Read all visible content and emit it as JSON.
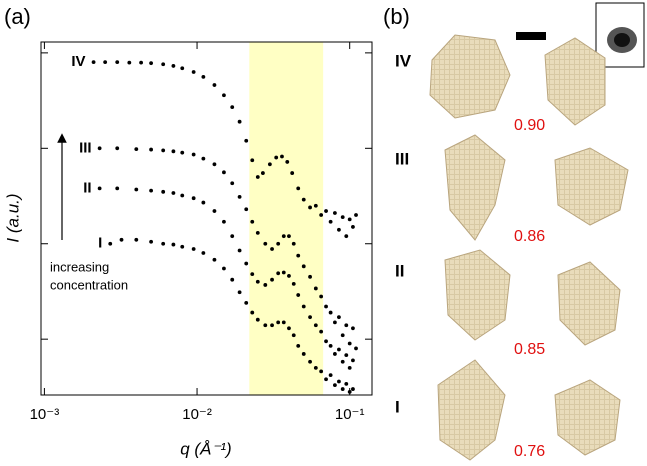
{
  "chart_data": {
    "type": "scatter",
    "panel_label": "(a)",
    "xlabel": "q (Å⁻¹)",
    "ylabel": "I (a.u.)",
    "xscale": "log",
    "yscale": "log",
    "xlim": [
      0.00095,
      0.14
    ],
    "ylim": [
      0.0026,
      13
    ],
    "xticks": [
      {
        "value": 0.001,
        "label": "10⁻³"
      },
      {
        "value": 0.01,
        "label": "10⁻²"
      },
      {
        "value": 0.1,
        "label": "10⁻¹"
      }
    ],
    "yticks": [
      10,
      1,
      0.1,
      0.01
    ],
    "ytick_labels": false,
    "shaded_region": {
      "xrange": [
        0.022,
        0.067
      ],
      "color": "#ffffc4"
    },
    "annotation": [
      "increasing",
      "concentration"
    ],
    "series": [
      {
        "name": "IV",
        "color": "#000000",
        "x": [
          0.0021,
          0.0025,
          0.003,
          0.0036,
          0.0043,
          0.005,
          0.006,
          0.007,
          0.008,
          0.0095,
          0.011,
          0.013,
          0.015,
          0.017,
          0.019,
          0.021,
          0.023,
          0.025,
          0.027,
          0.03,
          0.033,
          0.036,
          0.039,
          0.042,
          0.046,
          0.05,
          0.055,
          0.06,
          0.065,
          0.07,
          0.075,
          0.08,
          0.085,
          0.09,
          0.095,
          0.1,
          0.105,
          0.11
        ],
        "values": [
          8.0,
          8.0,
          8.0,
          7.9,
          7.9,
          7.8,
          7.6,
          7.3,
          6.9,
          6.3,
          5.6,
          4.6,
          3.6,
          2.7,
          1.9,
          1.2,
          0.75,
          0.5,
          0.55,
          0.68,
          0.8,
          0.82,
          0.72,
          0.55,
          0.38,
          0.29,
          0.24,
          0.25,
          0.2,
          0.22,
          0.17,
          0.21,
          0.14,
          0.19,
          0.12,
          0.18,
          0.15,
          0.2
        ]
      },
      {
        "name": "III",
        "color": "#000000",
        "x": [
          0.0023,
          0.003,
          0.004,
          0.005,
          0.006,
          0.007,
          0.008,
          0.0095,
          0.011,
          0.013,
          0.015,
          0.017,
          0.019,
          0.021,
          0.023,
          0.025,
          0.028,
          0.031,
          0.034,
          0.037,
          0.04,
          0.043,
          0.046,
          0.05,
          0.055,
          0.06,
          0.065,
          0.07,
          0.075,
          0.08,
          0.085,
          0.09,
          0.095,
          0.1,
          0.105,
          0.11
        ],
        "values": [
          1.0,
          1.0,
          0.98,
          0.97,
          0.95,
          0.93,
          0.9,
          0.86,
          0.78,
          0.68,
          0.56,
          0.43,
          0.31,
          0.23,
          0.17,
          0.13,
          0.1,
          0.088,
          0.1,
          0.12,
          0.12,
          0.1,
          0.075,
          0.058,
          0.045,
          0.034,
          0.028,
          0.022,
          0.019,
          0.015,
          0.017,
          0.011,
          0.014,
          0.009,
          0.013,
          0.008
        ]
      },
      {
        "name": "II",
        "color": "#000000",
        "x": [
          0.0023,
          0.003,
          0.004,
          0.005,
          0.006,
          0.007,
          0.008,
          0.0095,
          0.011,
          0.013,
          0.015,
          0.017,
          0.019,
          0.021,
          0.023,
          0.025,
          0.028,
          0.031,
          0.034,
          0.037,
          0.04,
          0.043,
          0.046,
          0.05,
          0.055,
          0.06,
          0.065,
          0.07,
          0.075,
          0.08,
          0.085,
          0.09,
          0.095,
          0.1,
          0.105
        ],
        "values": [
          0.38,
          0.38,
          0.37,
          0.36,
          0.35,
          0.34,
          0.32,
          0.3,
          0.27,
          0.22,
          0.17,
          0.12,
          0.085,
          0.062,
          0.048,
          0.04,
          0.037,
          0.042,
          0.049,
          0.05,
          0.046,
          0.038,
          0.029,
          0.022,
          0.017,
          0.014,
          0.012,
          0.0095,
          0.0085,
          0.007,
          0.0078,
          0.0058,
          0.0068,
          0.005,
          0.006
        ]
      },
      {
        "name": "I",
        "color": "#000000",
        "x": [
          0.0027,
          0.0032,
          0.004,
          0.005,
          0.006,
          0.007,
          0.008,
          0.0095,
          0.011,
          0.013,
          0.015,
          0.017,
          0.019,
          0.021,
          0.023,
          0.025,
          0.028,
          0.031,
          0.034,
          0.037,
          0.04,
          0.043,
          0.046,
          0.05,
          0.055,
          0.06,
          0.065,
          0.07,
          0.075,
          0.08,
          0.085,
          0.09,
          0.095,
          0.1,
          0.105
        ],
        "values": [
          0.1,
          0.11,
          0.11,
          0.105,
          0.1,
          0.098,
          0.093,
          0.088,
          0.08,
          0.068,
          0.055,
          0.042,
          0.031,
          0.024,
          0.019,
          0.016,
          0.014,
          0.014,
          0.015,
          0.015,
          0.013,
          0.011,
          0.0085,
          0.007,
          0.0058,
          0.005,
          0.0046,
          0.0038,
          0.0042,
          0.0033,
          0.0036,
          0.003,
          0.0034,
          0.0028,
          0.003
        ]
      }
    ]
  },
  "panel_b": {
    "label": "(b)",
    "rows": [
      {
        "label": "IV",
        "value": "0.90"
      },
      {
        "label": "III",
        "value": "0.86"
      },
      {
        "label": "II",
        "value": "0.85"
      },
      {
        "label": "I",
        "value": "0.76"
      }
    ]
  }
}
